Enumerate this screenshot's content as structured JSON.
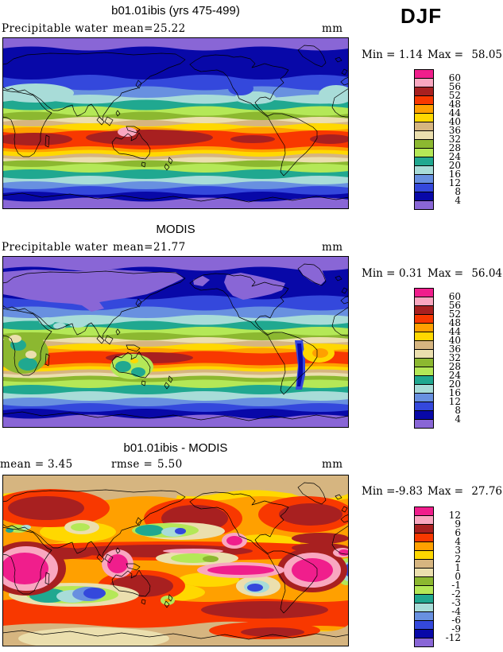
{
  "season_label": "DJF",
  "palette_top_to_bottom": [
    "#F01E8C",
    "#F9A7C0",
    "#A82020",
    "#F83800",
    "#FFA000",
    "#FFD800",
    "#D6B580",
    "#EBDFAE",
    "#8CB830",
    "#B4E857",
    "#20A890",
    "#A8DCD8",
    "#6890E0",
    "#3448DC",
    "#0808A8",
    "#8966D6"
  ],
  "panels": [
    {
      "title": "b01.01ibis (yrs 475-499)",
      "left_label": "Precipitable water",
      "stats": [
        {
          "label": "mean=",
          "value": "25.22"
        }
      ],
      "units": "mm",
      "range": {
        "min_label": "Min =",
        "min": "1.14",
        "max_label": "Max =",
        "max": "58.05"
      },
      "levels": [
        "60",
        "56",
        "52",
        "48",
        "44",
        "40",
        "36",
        "32",
        "28",
        "24",
        "20",
        "16",
        "12",
        "8",
        "4"
      ]
    },
    {
      "title": "MODIS",
      "left_label": "Precipitable water",
      "stats": [
        {
          "label": "mean=",
          "value": "21.77"
        }
      ],
      "units": "mm",
      "range": {
        "min_label": "Min =",
        "min": "0.31",
        "max_label": "Max =",
        "max": "56.04"
      },
      "levels": [
        "60",
        "56",
        "52",
        "48",
        "44",
        "40",
        "36",
        "32",
        "28",
        "24",
        "20",
        "16",
        "12",
        "8",
        "4"
      ]
    },
    {
      "title": "b01.01ibis - MODIS",
      "left_label": "",
      "stats": [
        {
          "label": "mean =",
          "value": "3.45"
        },
        {
          "label": "rmse =",
          "value": "5.50"
        }
      ],
      "units": "mm",
      "range": {
        "min_label": "Min =",
        "min": "-9.83",
        "max_label": "Max =",
        "max": "27.76"
      },
      "levels": [
        "12",
        "9",
        "6",
        "4",
        "3",
        "2",
        "1",
        "0",
        "-1",
        "-2",
        "-3",
        "-4",
        "-6",
        "-9",
        "-12"
      ]
    }
  ],
  "chart_data": [
    {
      "type": "heatmap",
      "title": "b01.01ibis (yrs 475-499)",
      "variable": "Precipitable water",
      "season": "DJF",
      "units": "mm",
      "mean": 25.22,
      "min": 1.14,
      "max": 58.05,
      "contour_levels": [
        4,
        8,
        12,
        16,
        20,
        24,
        28,
        32,
        36,
        40,
        44,
        48,
        52,
        56,
        60
      ],
      "palette_high_to_low": [
        "#F01E8C",
        "#F9A7C0",
        "#A82020",
        "#F83800",
        "#FFA000",
        "#FFD800",
        "#D6B580",
        "#EBDFAE",
        "#8CB830",
        "#B4E857",
        "#20A890",
        "#A8DCD8",
        "#6890E0",
        "#3448DC",
        "#0808A8",
        "#8966D6"
      ],
      "legend_position": "right"
    },
    {
      "type": "heatmap",
      "title": "MODIS",
      "variable": "Precipitable water",
      "season": "DJF",
      "units": "mm",
      "mean": 21.77,
      "min": 0.31,
      "max": 56.04,
      "contour_levels": [
        4,
        8,
        12,
        16,
        20,
        24,
        28,
        32,
        36,
        40,
        44,
        48,
        52,
        56,
        60
      ],
      "palette_high_to_low": [
        "#F01E8C",
        "#F9A7C0",
        "#A82020",
        "#F83800",
        "#FFA000",
        "#FFD800",
        "#D6B580",
        "#EBDFAE",
        "#8CB830",
        "#B4E857",
        "#20A890",
        "#A8DCD8",
        "#6890E0",
        "#3448DC",
        "#0808A8",
        "#8966D6"
      ],
      "legend_position": "right"
    },
    {
      "type": "heatmap",
      "title": "b01.01ibis - MODIS",
      "season": "DJF",
      "units": "mm",
      "mean": 3.45,
      "rmse": 5.5,
      "min": -9.83,
      "max": 27.76,
      "contour_levels": [
        -12,
        -9,
        -6,
        -4,
        -3,
        -2,
        -1,
        0,
        1,
        2,
        3,
        4,
        6,
        9,
        12
      ],
      "palette_high_to_low": [
        "#F01E8C",
        "#F9A7C0",
        "#A82020",
        "#F83800",
        "#FFA000",
        "#FFD800",
        "#D6B580",
        "#EBDFAE",
        "#8CB830",
        "#B4E857",
        "#20A890",
        "#A8DCD8",
        "#6890E0",
        "#3448DC",
        "#0808A8",
        "#8966D6"
      ],
      "legend_position": "right"
    }
  ]
}
